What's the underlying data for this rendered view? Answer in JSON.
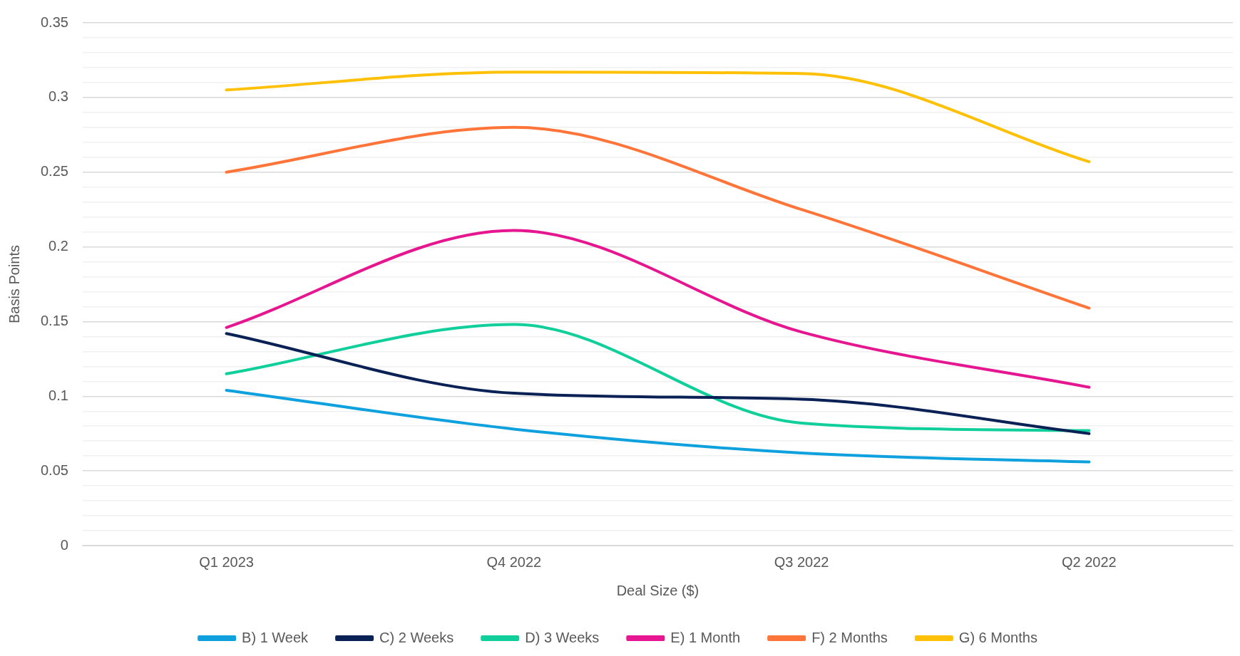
{
  "chart_data": {
    "type": "line",
    "xlabel": "Deal Size ($)",
    "ylabel": "Basis Points",
    "categories": [
      "Q1 2023",
      "Q4 2022",
      "Q3 2022",
      "Q2 2022"
    ],
    "series": [
      {
        "name": "B) 1 Week",
        "color": "#0ea1de",
        "values": [
          0.104,
          0.078,
          0.062,
          0.056
        ]
      },
      {
        "name": "C) 2 Weeks",
        "color": "#0a2155",
        "values": [
          0.142,
          0.102,
          0.098,
          0.075
        ]
      },
      {
        "name": "D) 3 Weeks",
        "color": "#10cf9b",
        "values": [
          0.115,
          0.148,
          0.082,
          0.077
        ]
      },
      {
        "name": "E) 1 Month",
        "color": "#e5168f",
        "values": [
          0.146,
          0.211,
          0.143,
          0.106
        ]
      },
      {
        "name": "F) 2 Months",
        "color": "#ff7438",
        "values": [
          0.25,
          0.28,
          0.225,
          0.159
        ]
      },
      {
        "name": "G) 6 Months",
        "color": "#ffc107",
        "values": [
          0.305,
          0.317,
          0.316,
          0.257
        ]
      }
    ],
    "ylim": [
      0,
      0.35
    ],
    "yticks": [
      0,
      {
        "value": 0.01,
        "label": null
      },
      {
        "value": 0.02,
        "label": null
      },
      {
        "value": 0.03,
        "label": null
      },
      {
        "value": 0.04,
        "label": null
      },
      0.05,
      {
        "value": 0.06,
        "label": null
      },
      {
        "value": 0.07,
        "label": null
      },
      {
        "value": 0.08,
        "label": null
      },
      {
        "value": 0.09,
        "label": null
      },
      0.1,
      {
        "value": 0.11,
        "label": null
      },
      {
        "value": 0.12,
        "label": null
      },
      {
        "value": 0.13,
        "label": null
      },
      {
        "value": 0.14,
        "label": null
      },
      0.15,
      {
        "value": 0.16,
        "label": null
      },
      {
        "value": 0.17,
        "label": null
      },
      {
        "value": 0.18,
        "label": null
      },
      {
        "value": 0.19,
        "label": null
      },
      0.2,
      {
        "value": 0.21,
        "label": null
      },
      {
        "value": 0.22,
        "label": null
      },
      {
        "value": 0.23,
        "label": null
      },
      {
        "value": 0.24,
        "label": null
      },
      0.25,
      {
        "value": 0.26,
        "label": null
      },
      {
        "value": 0.27,
        "label": null
      },
      {
        "value": 0.28,
        "label": null
      },
      {
        "value": 0.29,
        "label": null
      },
      0.3,
      {
        "value": 0.31,
        "label": null
      },
      {
        "value": 0.32,
        "label": null
      },
      {
        "value": 0.33,
        "label": null
      },
      {
        "value": 0.34,
        "label": null
      },
      0.35
    ],
    "grid": "y",
    "legend": "bottom",
    "marker": "none",
    "line_style": "solid"
  }
}
